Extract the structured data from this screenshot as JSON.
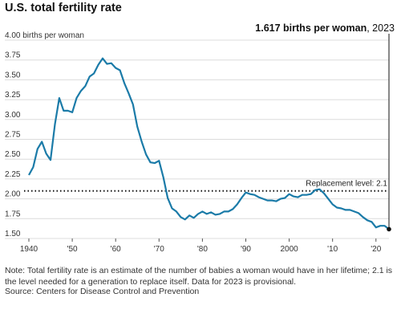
{
  "chart_data": {
    "type": "line",
    "title": "U.S. total fertility rate",
    "ylabel_unit": "births per woman",
    "ylim": [
      1.5,
      4.0
    ],
    "xlim": [
      1940,
      2023
    ],
    "yticks": [
      {
        "value": 4.0,
        "label": "4.00"
      },
      {
        "value": 3.75,
        "label": "3.75"
      },
      {
        "value": 3.5,
        "label": "3.50"
      },
      {
        "value": 3.25,
        "label": "3.25"
      },
      {
        "value": 3.0,
        "label": "3.00"
      },
      {
        "value": 2.75,
        "label": "2.75"
      },
      {
        "value": 2.5,
        "label": "2.50"
      },
      {
        "value": 2.25,
        "label": "2.25"
      },
      {
        "value": 2.0,
        "label": "2.00"
      },
      {
        "value": 1.75,
        "label": "1.75"
      },
      {
        "value": 1.5,
        "label": "1.50"
      }
    ],
    "xticks": [
      {
        "value": 1940,
        "label": "1940"
      },
      {
        "value": 1950,
        "label": "'50"
      },
      {
        "value": 1960,
        "label": "'60"
      },
      {
        "value": 1970,
        "label": "'70"
      },
      {
        "value": 1980,
        "label": "'80"
      },
      {
        "value": 1990,
        "label": "'90"
      },
      {
        "value": 2000,
        "label": "2000"
      },
      {
        "value": 2010,
        "label": "'10"
      },
      {
        "value": 2020,
        "label": "'20"
      }
    ],
    "grid": "horizontal",
    "reference_line": {
      "value": 2.1,
      "label": "Replacement level: 2.1"
    },
    "annotation": {
      "value_text": "1.617 births per woman",
      "year_text": ", 2023"
    },
    "series": [
      {
        "color": "#1b7ba8",
        "x": [
          1940,
          1941,
          1942,
          1943,
          1944,
          1945,
          1946,
          1947,
          1948,
          1949,
          1950,
          1951,
          1952,
          1953,
          1954,
          1955,
          1956,
          1957,
          1958,
          1959,
          1960,
          1961,
          1962,
          1963,
          1964,
          1965,
          1966,
          1967,
          1968,
          1969,
          1970,
          1971,
          1972,
          1973,
          1974,
          1975,
          1976,
          1977,
          1978,
          1979,
          1980,
          1981,
          1982,
          1983,
          1984,
          1985,
          1986,
          1987,
          1988,
          1989,
          1990,
          1991,
          1992,
          1993,
          1994,
          1995,
          1996,
          1997,
          1998,
          1999,
          2000,
          2001,
          2002,
          2003,
          2004,
          2005,
          2006,
          2007,
          2008,
          2009,
          2010,
          2011,
          2012,
          2013,
          2014,
          2015,
          2016,
          2017,
          2018,
          2019,
          2020,
          2021,
          2022,
          2023
        ],
        "y": [
          2.3,
          2.4,
          2.63,
          2.72,
          2.57,
          2.49,
          2.94,
          3.27,
          3.11,
          3.11,
          3.09,
          3.27,
          3.36,
          3.42,
          3.54,
          3.58,
          3.69,
          3.77,
          3.7,
          3.71,
          3.65,
          3.62,
          3.46,
          3.33,
          3.19,
          2.91,
          2.72,
          2.56,
          2.46,
          2.45,
          2.48,
          2.27,
          2.01,
          1.88,
          1.84,
          1.77,
          1.74,
          1.79,
          1.76,
          1.81,
          1.84,
          1.81,
          1.83,
          1.8,
          1.81,
          1.84,
          1.84,
          1.87,
          1.93,
          2.01,
          2.08,
          2.06,
          2.05,
          2.02,
          2.0,
          1.98,
          1.98,
          1.97,
          2.0,
          2.01,
          2.06,
          2.03,
          2.02,
          2.05,
          2.05,
          2.06,
          2.11,
          2.12,
          2.07,
          2.0,
          1.93,
          1.89,
          1.88,
          1.86,
          1.86,
          1.84,
          1.82,
          1.77,
          1.73,
          1.71,
          1.64,
          1.66,
          1.66,
          1.617
        ]
      }
    ]
  },
  "footer": {
    "note": "Note: Total fertility rate is an estimate of the number of babies a woman would have in her lifetime; 2.1 is the level needed for a generation to replace itself. Data for 2023 is provisional.",
    "source": "Source: Centers for Disease Control and Prevention"
  }
}
